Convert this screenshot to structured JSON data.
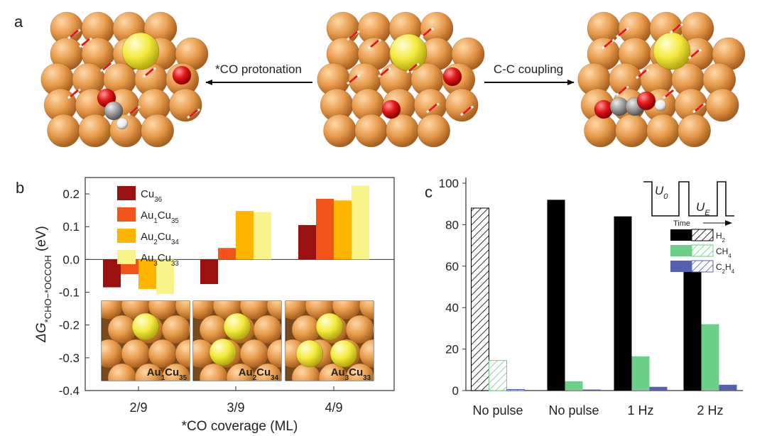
{
  "panel_a": {
    "label": "a",
    "arrow_left_label": "*CO protonation",
    "arrow_right_label": "C-C coupling"
  },
  "colors": {
    "cu": "#e79a4a",
    "au": "#f2ea3a",
    "oxygen": "#e3161b",
    "carbon": "#9a9a9a",
    "hydrogen": "#ffffff",
    "cu36": "#9b1010",
    "au1cu35": "#f2541a",
    "au2cu34": "#ffb400",
    "au3cu33": "#f9f48a",
    "h2": "#000000",
    "ch4": "#6cd08a",
    "c2h4": "#5560b0"
  },
  "chart_data": [
    {
      "type": "bar",
      "panel_label": "b",
      "ylabel": "ΔG*CHO−*OCCOH (eV)",
      "ylabel_main": "ΔG",
      "ylabel_sub": "*CHO−*OCCOH",
      "ylabel_unit": " (eV)",
      "xlabel": "*CO coverage (ML)",
      "categories": [
        "2/9",
        "3/9",
        "4/9"
      ],
      "ylim": [
        -0.4,
        0.25
      ],
      "yticks": [
        "0.2",
        "0.1",
        "0.0",
        "-0.1",
        "-0.2",
        "-0.3",
        "-0.4"
      ],
      "series": [
        {
          "name": "Cu36",
          "label": "Cu",
          "sub": "36",
          "values": [
            -0.085,
            -0.075,
            0.105
          ]
        },
        {
          "name": "Au1Cu35",
          "label": "Au",
          "sub": "1",
          "label2": "Cu",
          "sub2": "35",
          "values": [
            -0.045,
            0.035,
            0.185
          ]
        },
        {
          "name": "Au2Cu34",
          "label": "Au",
          "sub": "2",
          "label2": "Cu",
          "sub2": "34",
          "values": [
            -0.09,
            0.148,
            0.18
          ]
        },
        {
          "name": "Au3Cu33",
          "label": "Au",
          "sub": "3",
          "label2": "Cu",
          "sub2": "33",
          "values": [
            -0.105,
            0.145,
            0.225
          ]
        }
      ],
      "insets": [
        {
          "a": "Au",
          "as": "1",
          "b": "Cu",
          "bs": "35"
        },
        {
          "a": "Au",
          "as": "2",
          "b": "Cu",
          "bs": "34"
        },
        {
          "a": "Au",
          "as": "3",
          "b": "Cu",
          "bs": "33"
        }
      ]
    },
    {
      "type": "bar",
      "panel_label": "c",
      "categories": [
        "No pulse",
        "No pulse",
        "1 Hz",
        "2 Hz"
      ],
      "ylim": [
        0,
        100
      ],
      "yticks": [
        "100",
        "80",
        "60",
        "40",
        "20",
        "0"
      ],
      "series": [
        {
          "name": "H2",
          "label": "H",
          "sub": "2",
          "values": [
            88,
            92,
            84,
            60
          ]
        },
        {
          "name": "CH4",
          "label": "CH",
          "sub": "4",
          "values": [
            14.5,
            4.5,
            16.5,
            32
          ]
        },
        {
          "name": "C2H4",
          "label": "C",
          "sub": "2",
          "label2": "H",
          "sub2": "4",
          "values": [
            0.5,
            0.5,
            1.8,
            2.8
          ]
        }
      ],
      "hatched_category": 0,
      "inset": {
        "u0": "U",
        "u0_sub": "0",
        "ue": "U",
        "ue_sub": "E",
        "time_label": "Time"
      }
    }
  ]
}
